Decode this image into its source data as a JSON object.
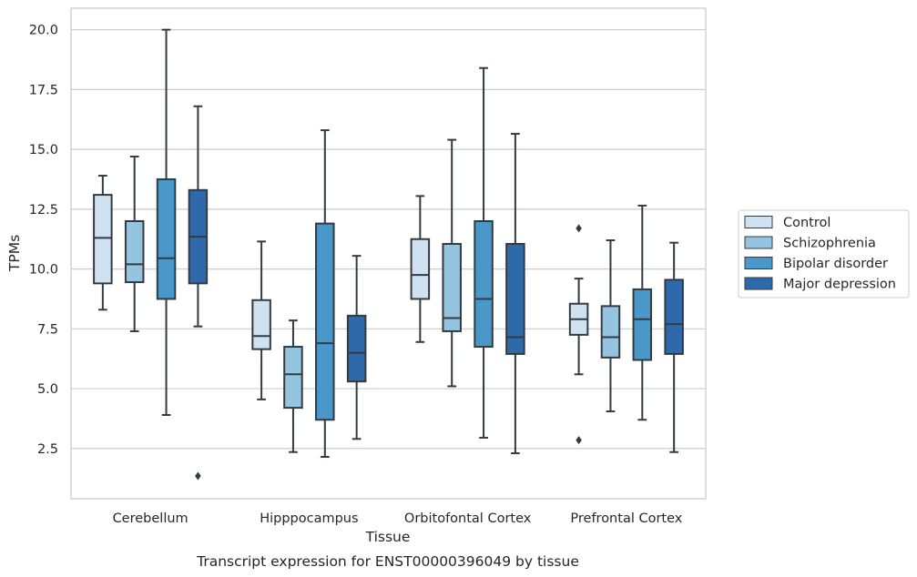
{
  "chart_data": {
    "type": "box",
    "caption": "Transcript expression for ENST00000396049 by tissue",
    "xlabel": "Tissue",
    "ylabel": "TPMs",
    "ylim": [
      0.4,
      20.9
    ],
    "yticks": [
      "2.5",
      "5.0",
      "7.5",
      "10.0",
      "12.5",
      "15.0",
      "17.5",
      "20.0"
    ],
    "ytick_values": [
      2.5,
      5.0,
      7.5,
      10.0,
      12.5,
      15.0,
      17.5,
      20.0
    ],
    "grid": "horizontal",
    "legend_position": "right",
    "categories": [
      "Cerebellum",
      "Hipppocampus",
      "Orbitofontal Cortex",
      "Prefrontal Cortex"
    ],
    "series": [
      {
        "name": "Control",
        "color": "#d0e1f2",
        "boxes": [
          {
            "whislo": 8.3,
            "q1": 9.4,
            "med": 11.3,
            "q3": 13.1,
            "whishi": 13.9,
            "fliers": []
          },
          {
            "whislo": 4.55,
            "q1": 6.65,
            "med": 7.2,
            "q3": 8.7,
            "whishi": 11.15,
            "fliers": []
          },
          {
            "whislo": 6.95,
            "q1": 8.75,
            "med": 9.75,
            "q3": 11.25,
            "whishi": 13.05,
            "fliers": []
          },
          {
            "whislo": 5.6,
            "q1": 7.25,
            "med": 7.9,
            "q3": 8.55,
            "whishi": 9.6,
            "fliers": [
              11.7,
              2.85
            ]
          }
        ]
      },
      {
        "name": "Schizophrenia",
        "color": "#94c4df",
        "boxes": [
          {
            "whislo": 7.4,
            "q1": 9.45,
            "med": 10.2,
            "q3": 12.0,
            "whishi": 14.7,
            "fliers": []
          },
          {
            "whislo": 2.35,
            "q1": 4.2,
            "med": 5.6,
            "q3": 6.75,
            "whishi": 7.85,
            "fliers": []
          },
          {
            "whislo": 5.1,
            "q1": 7.4,
            "med": 7.95,
            "q3": 11.05,
            "whishi": 15.4,
            "fliers": []
          },
          {
            "whislo": 4.05,
            "q1": 6.3,
            "med": 7.15,
            "q3": 8.45,
            "whishi": 11.2,
            "fliers": []
          }
        ]
      },
      {
        "name": "Bipolar disorder",
        "color": "#4a98c9",
        "boxes": [
          {
            "whislo": 3.9,
            "q1": 8.75,
            "med": 10.45,
            "q3": 13.75,
            "whishi": 20.0,
            "fliers": []
          },
          {
            "whislo": 2.15,
            "q1": 3.7,
            "med": 6.9,
            "q3": 11.9,
            "whishi": 15.8,
            "fliers": []
          },
          {
            "whislo": 2.95,
            "q1": 6.75,
            "med": 8.75,
            "q3": 12.0,
            "whishi": 18.4,
            "fliers": []
          },
          {
            "whislo": 3.7,
            "q1": 6.2,
            "med": 7.9,
            "q3": 9.15,
            "whishi": 12.65,
            "fliers": []
          }
        ]
      },
      {
        "name": "Major depression",
        "color": "#2e6aab",
        "boxes": [
          {
            "whislo": 7.6,
            "q1": 9.4,
            "med": 11.35,
            "q3": 13.3,
            "whishi": 16.8,
            "fliers": [
              1.35
            ]
          },
          {
            "whislo": 2.9,
            "q1": 5.3,
            "med": 6.5,
            "q3": 8.05,
            "whishi": 10.55,
            "fliers": []
          },
          {
            "whislo": 2.3,
            "q1": 6.45,
            "med": 7.15,
            "q3": 11.05,
            "whishi": 15.65,
            "fliers": []
          },
          {
            "whislo": 2.35,
            "q1": 6.45,
            "med": 7.7,
            "q3": 9.55,
            "whishi": 11.1,
            "fliers": []
          }
        ]
      }
    ]
  }
}
